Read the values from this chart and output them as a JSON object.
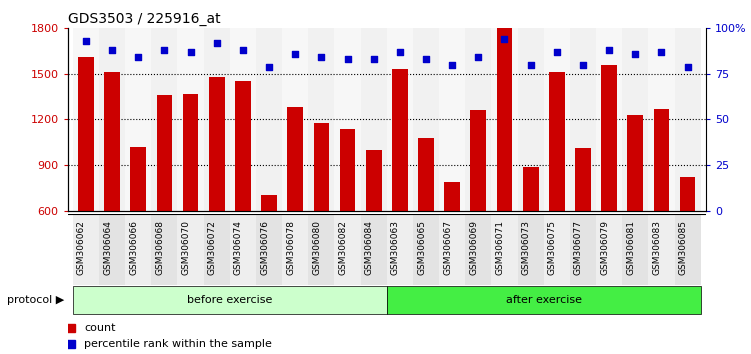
{
  "title": "GDS3503 / 225916_at",
  "categories": [
    "GSM306062",
    "GSM306064",
    "GSM306066",
    "GSM306068",
    "GSM306070",
    "GSM306072",
    "GSM306074",
    "GSM306076",
    "GSM306078",
    "GSM306080",
    "GSM306082",
    "GSM306084",
    "GSM306063",
    "GSM306065",
    "GSM306067",
    "GSM306069",
    "GSM306071",
    "GSM306073",
    "GSM306075",
    "GSM306077",
    "GSM306079",
    "GSM306081",
    "GSM306083",
    "GSM306085"
  ],
  "bar_values": [
    1610,
    1510,
    1020,
    1360,
    1370,
    1480,
    1450,
    700,
    1280,
    1180,
    1140,
    1000,
    1530,
    1080,
    790,
    1260,
    1800,
    890,
    1510,
    1010,
    1560,
    1230,
    1270,
    820
  ],
  "percentile_values": [
    93,
    88,
    84,
    88,
    87,
    92,
    88,
    79,
    86,
    84,
    83,
    83,
    87,
    83,
    80,
    84,
    94,
    80,
    87,
    80,
    88,
    86,
    87,
    79
  ],
  "bar_color": "#cc0000",
  "percentile_color": "#0000cc",
  "ylim_left": [
    600,
    1800
  ],
  "ylim_right": [
    0,
    100
  ],
  "yticks_left": [
    600,
    900,
    1200,
    1500,
    1800
  ],
  "yticks_right": [
    0,
    25,
    50,
    75,
    100
  ],
  "ytick_labels_right": [
    "0",
    "25",
    "50",
    "75",
    "100%"
  ],
  "grid_values": [
    900,
    1200,
    1500
  ],
  "before_exercise_count": 12,
  "after_exercise_count": 12,
  "group_labels": [
    "before exercise",
    "after exercise"
  ],
  "group_colors_before": "#ccffcc",
  "group_colors_after": "#44ee44",
  "protocol_label": "protocol",
  "legend_labels": [
    "count",
    "percentile rank within the sample"
  ],
  "title_fontsize": 10,
  "bar_width": 0.6
}
